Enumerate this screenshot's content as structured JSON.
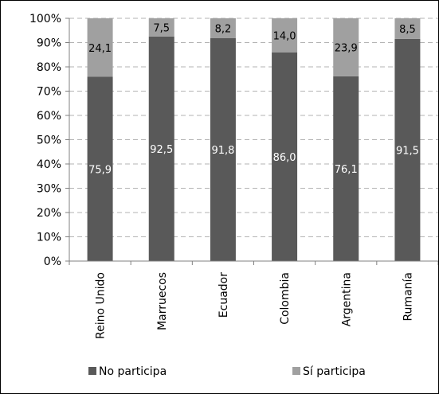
{
  "chart_data": {
    "type": "bar",
    "stacked": true,
    "percent": true,
    "categories": [
      "Reino Unido",
      "Marruecos",
      "Ecuador",
      "Colombia",
      "Argentina",
      "Rumanía"
    ],
    "series": [
      {
        "name": "No participa",
        "values": [
          75.9,
          92.5,
          91.8,
          86.0,
          76.1,
          91.5
        ],
        "labels": [
          "75,9",
          "92,5",
          "91,8",
          "86,0",
          "76,1",
          "91,5"
        ],
        "color": "#595959"
      },
      {
        "name": "Sí participa",
        "values": [
          24.1,
          7.5,
          8.2,
          14.0,
          23.9,
          8.5
        ],
        "labels": [
          "24,1",
          "7,5",
          "8,2",
          "14,0",
          "23,9",
          "8,5"
        ],
        "color": "#a0a0a0"
      }
    ],
    "ylim": [
      0,
      100
    ],
    "yticks": [
      "0%",
      "10%",
      "20%",
      "30%",
      "40%",
      "50%",
      "60%",
      "70%",
      "80%",
      "90%",
      "100%"
    ],
    "grid": "dashed horizontal",
    "legend_position": "bottom",
    "title": "",
    "xlabel": "",
    "ylabel": ""
  }
}
